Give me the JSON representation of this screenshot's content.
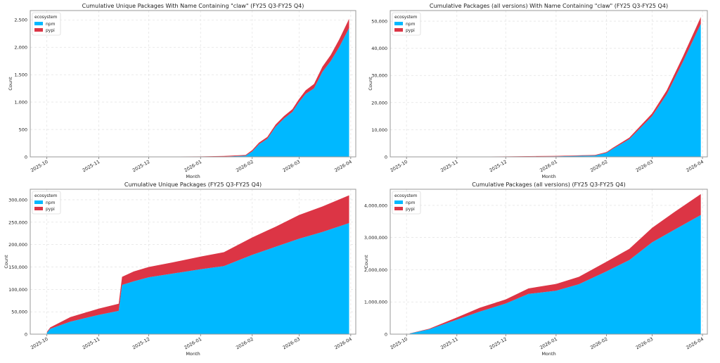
{
  "colors": {
    "npm": "#00b8ff",
    "pypi": "#dc3545"
  },
  "chart_data": [
    {
      "type": "area",
      "stacked": true,
      "title": "Cumulative Unique Packages With Name Containing \"claw\" (FY25 Q3-FY25 Q4)",
      "xlabel": "Month",
      "ylabel": "Count",
      "legend_title": "ecosystem",
      "legend_position": "top-left",
      "grid": true,
      "xlim": [
        "2025-09-21",
        "2026-04-04"
      ],
      "xticks": [
        "2025-10",
        "2025-11",
        "2025-12",
        "2026-01",
        "2026-02",
        "2026-03",
        "2026-04"
      ],
      "ylim": [
        0,
        2670
      ],
      "yticks": [
        0,
        500,
        1000,
        1500,
        2000,
        2500
      ],
      "ytick_labels": [
        "0",
        "500",
        "1,000",
        "1,500",
        "2,000",
        "2,500"
      ],
      "x": [
        "2025-10-16",
        "2025-11-01",
        "2025-12-01",
        "2026-01-01",
        "2026-01-15",
        "2026-01-28",
        "2026-02-01",
        "2026-02-05",
        "2026-02-10",
        "2026-02-15",
        "2026-02-20",
        "2026-02-25",
        "2026-03-01",
        "2026-03-05",
        "2026-03-10",
        "2026-03-15",
        "2026-03-20",
        "2026-03-25",
        "2026-03-31"
      ],
      "series": [
        {
          "name": "npm",
          "values": [
            0,
            0,
            0,
            0,
            5,
            20,
            100,
            230,
            330,
            550,
            700,
            820,
            1000,
            1150,
            1250,
            1550,
            1750,
            2000,
            2350
          ]
        },
        {
          "name": "pypi",
          "values": [
            2,
            4,
            6,
            8,
            10,
            15,
            25,
            30,
            35,
            40,
            45,
            50,
            55,
            65,
            80,
            95,
            110,
            140,
            170
          ]
        }
      ]
    },
    {
      "type": "area",
      "stacked": true,
      "title": "Cumulative Packages (all versions) With Name Containing \"claw\" (FY25 Q3-FY25 Q4)",
      "xlabel": "Month",
      "ylabel": "Count",
      "legend_title": "ecosystem",
      "legend_position": "top-left",
      "grid": true,
      "xlim": [
        "2025-09-21",
        "2026-04-04"
      ],
      "xticks": [
        "2025-10",
        "2025-11",
        "2025-12",
        "2026-01",
        "2026-02",
        "2026-03",
        "2026-04"
      ],
      "ylim": [
        0,
        53900
      ],
      "yticks": [
        0,
        10000,
        20000,
        30000,
        40000,
        50000
      ],
      "ytick_labels": [
        "0",
        "10,000",
        "20,000",
        "30,000",
        "40,000",
        "50,000"
      ],
      "x": [
        "2025-10-16",
        "2025-11-01",
        "2025-12-01",
        "2026-01-01",
        "2026-01-25",
        "2026-02-01",
        "2026-02-05",
        "2026-02-15",
        "2026-03-01",
        "2026-03-10",
        "2026-03-20",
        "2026-03-31"
      ],
      "series": [
        {
          "name": "npm",
          "values": [
            0,
            0,
            50,
            200,
            500,
            1500,
            3000,
            6500,
            15000,
            23000,
            35000,
            49000
          ]
        },
        {
          "name": "pypi",
          "values": [
            50,
            80,
            100,
            150,
            200,
            300,
            400,
            600,
            1000,
            1500,
            2000,
            2500
          ]
        }
      ]
    },
    {
      "type": "area",
      "stacked": true,
      "title": "Cumulative Unique Packages (FY25 Q3-FY25 Q4)",
      "xlabel": "Month",
      "ylabel": "Count",
      "legend_title": "ecosystem",
      "legend_position": "top-left",
      "grid": true,
      "xlim": [
        "2025-09-21",
        "2026-04-04"
      ],
      "xticks": [
        "2025-10",
        "2025-11",
        "2025-12",
        "2026-01",
        "2026-02",
        "2026-03",
        "2026-04"
      ],
      "ylim": [
        0,
        323500
      ],
      "yticks": [
        0,
        50000,
        100000,
        150000,
        200000,
        250000,
        300000
      ],
      "ytick_labels": [
        "0",
        "50,000",
        "100,000",
        "150,000",
        "200,000",
        "250,000",
        "300,000"
      ],
      "x": [
        "2025-10-01",
        "2025-10-03",
        "2025-10-15",
        "2025-11-01",
        "2025-11-13",
        "2025-11-15",
        "2025-11-22",
        "2025-12-01",
        "2025-12-15",
        "2026-01-01",
        "2026-01-15",
        "2026-02-01",
        "2026-02-15",
        "2026-03-01",
        "2026-03-15",
        "2026-03-31"
      ],
      "series": [
        {
          "name": "npm",
          "values": [
            3000,
            12000,
            28000,
            43000,
            52000,
            110000,
            118000,
            127000,
            135000,
            145000,
            152000,
            177000,
            195000,
            213000,
            228000,
            248000
          ]
        },
        {
          "name": "pypi",
          "values": [
            2000,
            3000,
            10000,
            14000,
            16000,
            18000,
            22000,
            23000,
            25000,
            28000,
            31000,
            39000,
            45000,
            53000,
            57000,
            62000
          ]
        }
      ]
    },
    {
      "type": "area",
      "stacked": true,
      "title": "Cumulative Packages (all versions) (FY25 Q3-FY25 Q4)",
      "xlabel": "Month",
      "ylabel": "Count",
      "legend_title": "ecosystem",
      "legend_position": "top-left",
      "grid": true,
      "xlim": [
        "2025-09-21",
        "2026-04-04"
      ],
      "xticks": [
        "2025-10",
        "2025-11",
        "2025-12",
        "2026-01",
        "2026-02",
        "2026-03",
        "2026-04"
      ],
      "ylim": [
        0,
        4500000
      ],
      "yticks": [
        0,
        1000000,
        2000000,
        3000000,
        4000000
      ],
      "ytick_labels": [
        "0",
        "1,000,000",
        "2,000,000",
        "3,000,000",
        "4,000,000"
      ],
      "x": [
        "2025-10-03",
        "2025-10-15",
        "2025-11-01",
        "2025-11-15",
        "2025-12-01",
        "2025-12-15",
        "2026-01-01",
        "2026-01-15",
        "2026-02-01",
        "2026-02-15",
        "2026-03-01",
        "2026-03-15",
        "2026-03-31"
      ],
      "series": [
        {
          "name": "npm",
          "values": [
            20000,
            150000,
            450000,
            700000,
            950000,
            1250000,
            1350000,
            1550000,
            1950000,
            2300000,
            2850000,
            3250000,
            3700000
          ]
        },
        {
          "name": "pypi",
          "values": [
            5000,
            20000,
            70000,
            120000,
            130000,
            170000,
            210000,
            230000,
            300000,
            350000,
            450000,
            550000,
            650000
          ]
        }
      ]
    }
  ]
}
